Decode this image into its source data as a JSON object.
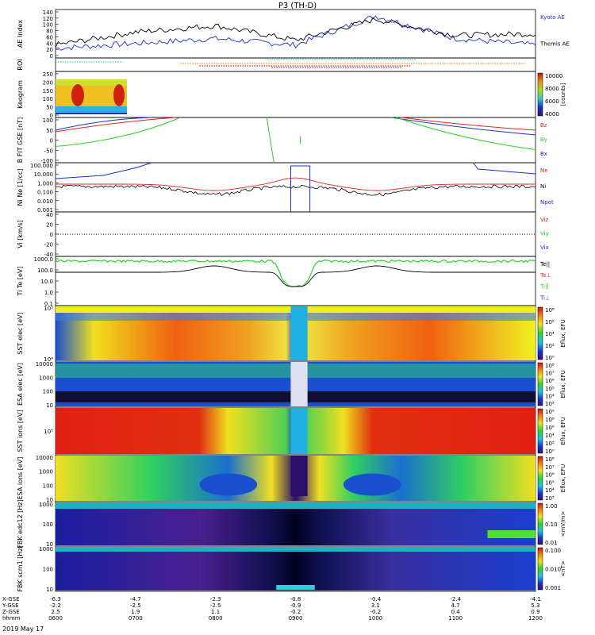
{
  "title": "P3 (TH-D)",
  "date_label": "2019 May 17",
  "colors": {
    "blue": "#1a2fcf",
    "red": "#e0261a",
    "green": "#2ccf2c",
    "black": "#000000",
    "cyan": "#30d0d0",
    "orange": "#e89020",
    "purple": "#7a2aa0"
  },
  "panels": [
    {
      "id": "ae",
      "ylabel": [
        "AE Index"
      ],
      "unit": "",
      "ticks": [
        "140",
        "120",
        "100",
        "80",
        "60",
        "40",
        "20",
        "0"
      ],
      "legend": [
        {
          "text": "Kyoto AE",
          "color": "#1a2fcf"
        },
        {
          "text": "Themis AE",
          "color": "#000000"
        }
      ]
    },
    {
      "id": "roi",
      "ylabel": [
        "ROI"
      ],
      "unit": "",
      "ticks": [],
      "legend": []
    },
    {
      "id": "keo",
      "ylabel": [
        "Keogram"
      ],
      "unit": "",
      "ticks": [
        "250",
        "200",
        "150",
        "100",
        "50",
        "0"
      ],
      "legend": []
    },
    {
      "id": "b",
      "ylabel": [
        "B FIT",
        "GSE",
        "[nT]"
      ],
      "unit": "",
      "ticks": [
        "100",
        "50",
        "0",
        "-50",
        "-100"
      ],
      "legend": [
        {
          "text": "Bz",
          "color": "#e0261a"
        },
        {
          "text": "By",
          "color": "#2ccf2c"
        },
        {
          "text": "Bx",
          "color": "#1a2fcf"
        }
      ]
    },
    {
      "id": "n",
      "ylabel": [
        "Ni",
        "Ne",
        "[1/cc]"
      ],
      "unit": "",
      "ticks": [
        "100.000",
        "10.000",
        "1.000",
        "0.100",
        "0.010",
        "0.001"
      ],
      "legend": [
        {
          "text": "Ne",
          "color": "#e0261a"
        },
        {
          "text": "Ni",
          "color": "#000000"
        },
        {
          "text": "Npot",
          "color": "#1a2fcf"
        }
      ]
    },
    {
      "id": "v",
      "ylabel": [
        "Vi",
        "[km/s]"
      ],
      "unit": "",
      "ticks": [
        "40",
        "20",
        "0",
        "-20",
        "-40"
      ],
      "legend": [
        {
          "text": "Viz",
          "color": "#e0261a"
        },
        {
          "text": "Viy",
          "color": "#2ccf2c"
        },
        {
          "text": "Vix",
          "color": "#1a2fcf"
        }
      ]
    },
    {
      "id": "t",
      "ylabel": [
        "Ti",
        "Te",
        "[eV]"
      ],
      "unit": "",
      "ticks": [
        "1000.0",
        "100.0",
        "10.0",
        "1.0",
        "0.1"
      ],
      "legend": [
        {
          "text": "Te||",
          "color": "#000000"
        },
        {
          "text": "Te⊥",
          "color": "#e0261a"
        },
        {
          "text": "Ti||",
          "color": "#2ccf2c"
        },
        {
          "text": "Ti⊥",
          "color": "#1a2fcf"
        }
      ]
    },
    {
      "id": "sste",
      "ylabel": [
        "SST",
        "elec",
        "[eV]"
      ],
      "unit": "",
      "ticks": [
        "10⁵",
        "10⁴"
      ],
      "legend": []
    },
    {
      "id": "esae",
      "ylabel": [
        "ESA",
        "elec",
        "[eV]"
      ],
      "unit": "",
      "ticks": [
        "10000",
        "1000",
        "100",
        "10"
      ],
      "legend": []
    },
    {
      "id": "ssti",
      "ylabel": [
        "SST",
        "ions",
        "[eV]"
      ],
      "unit": "",
      "ticks": [
        "10⁵"
      ],
      "legend": []
    },
    {
      "id": "esai",
      "ylabel": [
        "ESA",
        "ions",
        "[eV]"
      ],
      "unit": "",
      "ticks": [
        "10000",
        "1000",
        "100",
        "10"
      ],
      "legend": []
    },
    {
      "id": "fbke",
      "ylabel": [
        "FBK",
        "edc12",
        "[Hz]"
      ],
      "unit": "",
      "ticks": [
        "1000",
        "100",
        "10"
      ],
      "legend": []
    },
    {
      "id": "fbkb",
      "ylabel": [
        "FBK",
        "scm1",
        "[Hz]"
      ],
      "unit": "",
      "ticks": [
        "1000",
        "100",
        "10"
      ],
      "legend": []
    }
  ],
  "colorbars": [
    {
      "panel": "keo",
      "ticks": [
        "10000",
        "8000",
        "6000",
        "4000"
      ],
      "label": "[counts]"
    },
    {
      "panel": "sste",
      "ticks": [
        "10⁸",
        "10⁶",
        "10⁴",
        "10²",
        "10⁰"
      ],
      "label": "Eflux, EFU"
    },
    {
      "panel": "esae",
      "ticks": [
        "10⁸",
        "10⁷",
        "10⁶",
        "10⁵",
        "10⁴",
        "10³"
      ],
      "label": "Eflux, EFU"
    },
    {
      "panel": "ssti",
      "ticks": [
        "10⁹",
        "10⁸",
        "10⁶",
        "10⁴",
        "10²",
        "10⁰"
      ],
      "label": "Eflux, EFU"
    },
    {
      "panel": "esai",
      "ticks": [
        "10⁸",
        "10⁷",
        "10⁶",
        "10⁵",
        "10⁴",
        "10³"
      ],
      "label": "Eflux, EFU"
    },
    {
      "panel": "fbke",
      "ticks": [
        "1.00",
        "0.10",
        "0.01"
      ],
      "label": "<mV/m>"
    },
    {
      "panel": "fbkb",
      "ticks": [
        "0.100",
        "0.010",
        "0.001"
      ],
      "label": "<nT>"
    }
  ],
  "axis_rows": [
    {
      "name": "X-GSE",
      "values": [
        "-6.3",
        "-4.7",
        "-2.3",
        "-0.8",
        "-0.4",
        "-2.4",
        "-4.1"
      ]
    },
    {
      "name": "Y-GSE",
      "values": [
        "-2.2",
        "-2.5",
        "-2.5",
        "-0.9",
        "3.1",
        "4.7",
        "5.3"
      ]
    },
    {
      "name": "Z-GSE",
      "values": [
        "2.5",
        "1.9",
        "1.1",
        "-0.2",
        "-0.2",
        "0.4",
        "0.9"
      ]
    },
    {
      "name": "hhmm",
      "values": [
        "0600",
        "0700",
        "0800",
        "0900",
        "1000",
        "1100",
        "1200"
      ]
    }
  ],
  "chart_data": {
    "type": "line",
    "title": "P3 (TH-D)",
    "x": [
      "0600",
      "0700",
      "0800",
      "0900",
      "1000",
      "1100",
      "1200"
    ],
    "xlabel": "hhmm",
    "series": [
      {
        "name": "Kyoto AE",
        "values": [
          30,
          45,
          60,
          40,
          130,
          60,
          40
        ]
      },
      {
        "name": "Themis AE",
        "values": [
          40,
          80,
          100,
          55,
          120,
          70,
          75
        ]
      }
    ],
    "ylabel": "AE Index",
    "ylim": [
      0,
      150
    ]
  }
}
